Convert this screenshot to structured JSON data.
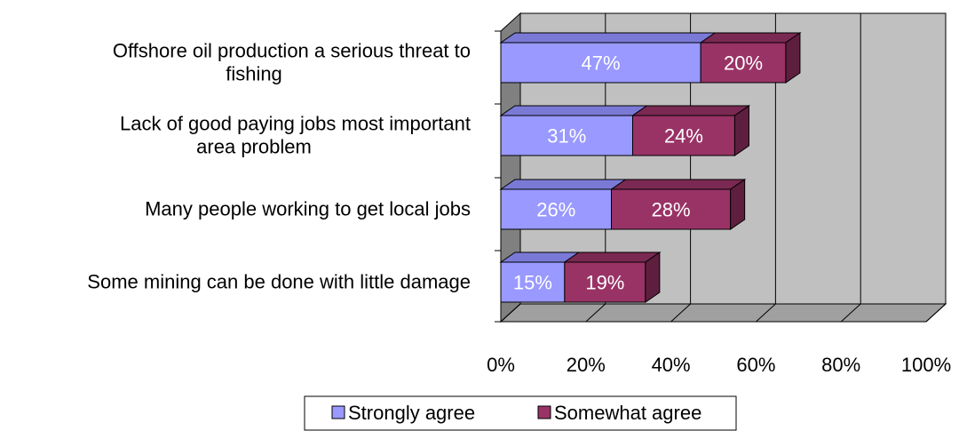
{
  "chart_data": {
    "type": "bar",
    "orientation": "horizontal",
    "stacked": true,
    "three_d": true,
    "categories": [
      [
        "Offshore oil production a serious threat to",
        "fishing"
      ],
      [
        "Lack of good paying jobs most important",
        "area problem"
      ],
      [
        "Many people working to get local jobs"
      ],
      [
        "Some mining can be done with little damage"
      ]
    ],
    "series": [
      {
        "name": "Strongly agree",
        "values": [
          47,
          31,
          26,
          15
        ],
        "labels": [
          "47%",
          "31%",
          "26%",
          "15%"
        ],
        "color": "#9999ff",
        "side_color": "#6b6bc4",
        "top_color": "#7a7ad6"
      },
      {
        "name": "Somewhat agree",
        "values": [
          20,
          24,
          28,
          19
        ],
        "labels": [
          "20%",
          "24%",
          "28%",
          "19%"
        ],
        "color": "#993366",
        "side_color": "#5e1f3f",
        "top_color": "#7a2952"
      }
    ],
    "x_ticks": [
      "0%",
      "20%",
      "40%",
      "60%",
      "80%",
      "100%"
    ],
    "xlim": [
      0,
      100
    ],
    "grid": true,
    "legend": "bottom",
    "colors": {
      "wall": "#c0c0c0",
      "wall_dark": "#808080",
      "floor": "#a0a0a0",
      "gridline": "#000000"
    }
  }
}
